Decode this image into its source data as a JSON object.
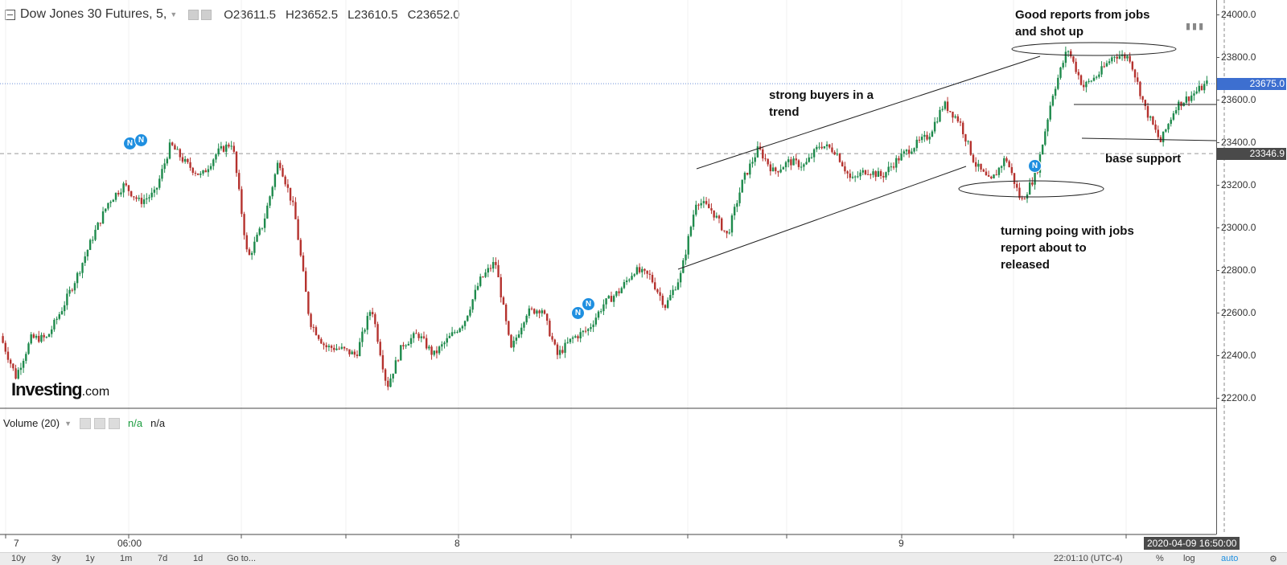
{
  "header": {
    "symbol": "Dow Jones 30 Futures, 5,",
    "open": "O23611.5",
    "high": "H23652.5",
    "low": "L23610.5",
    "close": "C23652.0"
  },
  "price_axis": {
    "ticks": [
      "24000.0",
      "23800.0",
      "23600.0",
      "23400.0",
      "23200.0",
      "23000.0",
      "22800.0",
      "22600.0",
      "22400.0",
      "22200.0"
    ],
    "last_price_label": "23675.0",
    "crosshair_price_label": "23346.9",
    "last_price_color": "#3d6fd0",
    "crosshair_label_color": "#4a4a4a"
  },
  "time_axis": {
    "labels": [
      "7",
      "06:00",
      "8",
      "9"
    ],
    "cursor_label": "2020-04-09 16:50:00"
  },
  "volume_pane": {
    "title": "Volume (20)",
    "value1": "n/a",
    "value2": "n/a"
  },
  "logo": {
    "brand": "Investing",
    "domain": ".com"
  },
  "bottom_bar": {
    "ranges": [
      "10y",
      "3y",
      "1y",
      "1m",
      "7d",
      "1d"
    ],
    "goto": "Go to...",
    "time": "22:01:10 (UTC-4)",
    "percent": "%",
    "log": "log",
    "auto": "auto",
    "settings_icon": "gear-icon"
  },
  "annotations": {
    "good_reports": "Good reports from jobs\nand shot up",
    "strong_buyers": "strong buyers in a\ntrend",
    "base_support": "base support",
    "turning_point": "turning poing with jobs\nreport about to\nreleased"
  },
  "news_markers": [
    "N",
    "N",
    "N",
    "N",
    "N"
  ],
  "colors": {
    "up": "#1e8a4c",
    "down": "#b5322e",
    "accent": "#1f8fe0"
  },
  "chart_data": {
    "type": "candlestick-line",
    "y_unit": "price",
    "ylim": [
      22130,
      24060
    ],
    "x_ticks": [
      "7",
      "06:00",
      "8",
      "9"
    ],
    "series": [
      {
        "points": [
          [
            0,
            22490
          ],
          [
            1,
            22300
          ],
          [
            2,
            22480
          ],
          [
            3,
            22480
          ],
          [
            4,
            22620
          ],
          [
            5,
            22780
          ],
          [
            6,
            22960
          ],
          [
            7,
            23120
          ],
          [
            8,
            23200
          ],
          [
            9,
            23120
          ],
          [
            10,
            23160
          ],
          [
            11,
            23390
          ],
          [
            12,
            23300
          ],
          [
            13,
            23240
          ],
          [
            14,
            23350
          ],
          [
            15,
            23400
          ],
          [
            16,
            22850
          ],
          [
            17,
            23020
          ],
          [
            18,
            23320
          ],
          [
            19,
            23080
          ],
          [
            20,
            22560
          ],
          [
            21,
            22440
          ],
          [
            22,
            22430
          ],
          [
            23,
            22400
          ],
          [
            24,
            22630
          ],
          [
            25,
            22250
          ],
          [
            26,
            22450
          ],
          [
            27,
            22500
          ],
          [
            28,
            22400
          ],
          [
            29,
            22480
          ],
          [
            30,
            22560
          ],
          [
            31,
            22750
          ],
          [
            32,
            22840
          ],
          [
            33,
            22420
          ],
          [
            34,
            22600
          ],
          [
            35,
            22620
          ],
          [
            36,
            22400
          ],
          [
            37,
            22480
          ],
          [
            38,
            22520
          ],
          [
            39,
            22640
          ],
          [
            40,
            22700
          ],
          [
            41,
            22800
          ],
          [
            42,
            22770
          ],
          [
            43,
            22630
          ],
          [
            44,
            22780
          ],
          [
            45,
            23130
          ],
          [
            46,
            23080
          ],
          [
            47,
            22960
          ],
          [
            48,
            23220
          ],
          [
            49,
            23370
          ],
          [
            50,
            23260
          ],
          [
            51,
            23310
          ],
          [
            52,
            23290
          ],
          [
            53,
            23390
          ],
          [
            54,
            23360
          ],
          [
            55,
            23220
          ],
          [
            56,
            23270
          ],
          [
            57,
            23240
          ],
          [
            58,
            23320
          ],
          [
            59,
            23380
          ],
          [
            60,
            23430
          ],
          [
            61,
            23580
          ],
          [
            62,
            23500
          ],
          [
            63,
            23300
          ],
          [
            64,
            23210
          ],
          [
            65,
            23330
          ],
          [
            66,
            23120
          ],
          [
            67,
            23260
          ],
          [
            68,
            23620
          ],
          [
            69,
            23840
          ],
          [
            70,
            23660
          ],
          [
            71,
            23720
          ],
          [
            72,
            23810
          ],
          [
            73,
            23800
          ],
          [
            74,
            23560
          ],
          [
            75,
            23400
          ],
          [
            76,
            23570
          ],
          [
            77,
            23620
          ],
          [
            78,
            23675
          ]
        ]
      }
    ],
    "reference_lines": [
      23675.0,
      23346.9
    ],
    "annotations": [
      "Good reports from jobs and shot up",
      "strong buyers in a trend",
      "base support",
      "turning poing with jobs report about to released"
    ]
  }
}
